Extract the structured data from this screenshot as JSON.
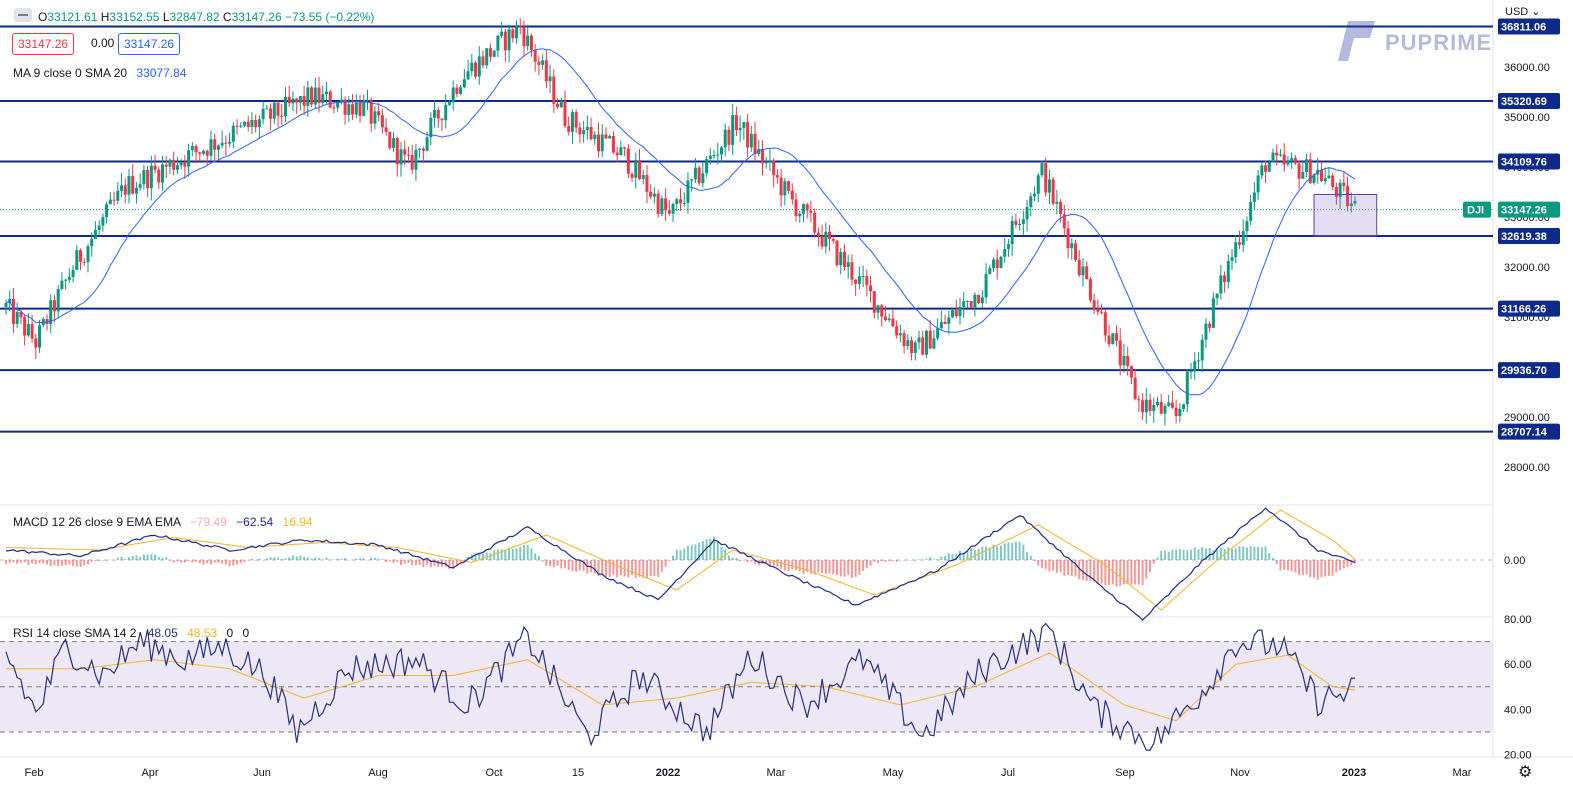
{
  "ohlc": {
    "o_label": "O",
    "o": "33121.61",
    "h_label": "H",
    "h": "33152.55",
    "l_label": "L",
    "l": "32847.82",
    "c_label": "C",
    "c": "33147.26",
    "chg": "−73.55 (−0.22%)"
  },
  "price_boxes": {
    "bid": "33147.26",
    "spread": "0.00",
    "ask": "33147.26"
  },
  "ma_label": {
    "text": "MA 9 close 0 SMA 20",
    "value": "33077.84"
  },
  "macd_label": {
    "text": "MACD 12 26 close 9 EMA EMA",
    "hist": "−79.49",
    "macd": "−62.54",
    "signal": "16.94"
  },
  "rsi_label": {
    "text": "RSI 14 close SMA 14 2",
    "rsi": "48.05",
    "sma": "48.53",
    "z1": "0",
    "z2": "0"
  },
  "currency": "USD",
  "symbol": "DJI",
  "logo_text": "PUPRIME",
  "colors": {
    "up": "#089981",
    "down": "#f23645",
    "ma": "#2962ff",
    "hline": "#0d2a8a",
    "signal": "#f5b42a",
    "macd": "#1d2c8f",
    "rsi": "#25317f",
    "rsi_band": "#ede7f6"
  },
  "chart_data": [
    {
      "type": "candlestick",
      "symbol": "DJI",
      "x_ticks": [
        "Feb",
        "Apr",
        "Jun",
        "Aug",
        "Oct",
        "15",
        "2022",
        "Mar",
        "May",
        "Jul",
        "Sep",
        "Nov",
        "2023",
        "Mar"
      ],
      "y_ticks": [
        "28000.00",
        "29000.00",
        "30000.00",
        "31000.00",
        "32000.00",
        "33000.00",
        "34000.00",
        "35000.00",
        "36000.00"
      ],
      "ylim": [
        27500,
        37100
      ],
      "horizontal_levels": [
        "36811.06",
        "35320.69",
        "34109.76",
        "32619.38",
        "31166.26",
        "29936.70",
        "28707.14"
      ],
      "last_price": "33147.26",
      "close_path_anchors": [
        [
          0,
          31200
        ],
        [
          8,
          30500
        ],
        [
          18,
          32000
        ],
        [
          32,
          33600
        ],
        [
          48,
          34200
        ],
        [
          62,
          34700
        ],
        [
          82,
          35400
        ],
        [
          96,
          35200
        ],
        [
          108,
          34000
        ],
        [
          122,
          35800
        ],
        [
          138,
          36800
        ],
        [
          150,
          35000
        ],
        [
          166,
          34200
        ],
        [
          178,
          33000
        ],
        [
          196,
          34900
        ],
        [
          210,
          33400
        ],
        [
          228,
          31800
        ],
        [
          244,
          30300
        ],
        [
          262,
          31600
        ],
        [
          278,
          33900
        ],
        [
          290,
          31700
        ],
        [
          304,
          29300
        ],
        [
          314,
          29000
        ],
        [
          322,
          30800
        ],
        [
          338,
          34100
        ],
        [
          352,
          33900
        ],
        [
          362,
          33180
        ]
      ],
      "ma_overlay": {
        "name": "MA 9 close 0 SMA 20",
        "last": "33077.84"
      }
    },
    {
      "type": "line",
      "name": "MACD",
      "y_ticks": [
        "0.00"
      ],
      "series": [
        {
          "name": "MACD",
          "last": "-62.54"
        },
        {
          "name": "Signal",
          "last": "16.94"
        },
        {
          "name": "Histogram",
          "last": "-79.49"
        }
      ],
      "macd_anchors": [
        [
          0,
          200
        ],
        [
          20,
          80
        ],
        [
          40,
          500
        ],
        [
          60,
          200
        ],
        [
          80,
          400
        ],
        [
          100,
          300
        ],
        [
          120,
          -150
        ],
        [
          140,
          650
        ],
        [
          160,
          -300
        ],
        [
          175,
          -800
        ],
        [
          190,
          400
        ],
        [
          210,
          -300
        ],
        [
          228,
          -900
        ],
        [
          250,
          -200
        ],
        [
          272,
          900
        ],
        [
          290,
          -300
        ],
        [
          305,
          -1200
        ],
        [
          320,
          -100
        ],
        [
          338,
          1050
        ],
        [
          352,
          200
        ],
        [
          362,
          -62.54
        ]
      ],
      "signal_anchors": [
        [
          0,
          250
        ],
        [
          25,
          200
        ],
        [
          45,
          450
        ],
        [
          65,
          250
        ],
        [
          85,
          350
        ],
        [
          105,
          250
        ],
        [
          125,
          -50
        ],
        [
          145,
          500
        ],
        [
          165,
          -150
        ],
        [
          180,
          -600
        ],
        [
          195,
          200
        ],
        [
          215,
          -200
        ],
        [
          233,
          -700
        ],
        [
          255,
          -100
        ],
        [
          277,
          700
        ],
        [
          295,
          -100
        ],
        [
          310,
          -1000
        ],
        [
          325,
          0
        ],
        [
          342,
          1000
        ],
        [
          356,
          400
        ],
        [
          362,
          16.94
        ]
      ]
    },
    {
      "type": "line",
      "name": "RSI",
      "y_ticks": [
        "80.00",
        "60.00",
        "40.00",
        "20.00"
      ],
      "ylim": [
        18,
        83
      ],
      "bands": [
        30,
        50,
        70
      ],
      "series": [
        {
          "name": "RSI",
          "last": "48.05"
        },
        {
          "name": "SMA",
          "last": "48.53"
        }
      ],
      "rsi_anchors": [
        [
          0,
          65
        ],
        [
          8,
          38
        ],
        [
          16,
          68
        ],
        [
          26,
          55
        ],
        [
          36,
          70
        ],
        [
          48,
          62
        ],
        [
          58,
          68
        ],
        [
          70,
          55
        ],
        [
          78,
          30
        ],
        [
          92,
          58
        ],
        [
          110,
          62
        ],
        [
          124,
          42
        ],
        [
          140,
          72
        ],
        [
          156,
          28
        ],
        [
          170,
          55
        ],
        [
          188,
          30
        ],
        [
          200,
          64
        ],
        [
          214,
          42
        ],
        [
          230,
          62
        ],
        [
          246,
          28
        ],
        [
          262,
          58
        ],
        [
          280,
          75
        ],
        [
          292,
          40
        ],
        [
          308,
          25
        ],
        [
          322,
          50
        ],
        [
          330,
          70
        ],
        [
          342,
          68
        ],
        [
          352,
          44
        ],
        [
          362,
          48.05
        ]
      ],
      "rsi_sma_anchors": [
        [
          0,
          58
        ],
        [
          20,
          58
        ],
        [
          40,
          62
        ],
        [
          60,
          58
        ],
        [
          80,
          45
        ],
        [
          100,
          55
        ],
        [
          120,
          55
        ],
        [
          140,
          62
        ],
        [
          160,
          42
        ],
        [
          180,
          45
        ],
        [
          200,
          52
        ],
        [
          220,
          50
        ],
        [
          240,
          42
        ],
        [
          260,
          50
        ],
        [
          280,
          65
        ],
        [
          300,
          42
        ],
        [
          314,
          35
        ],
        [
          330,
          60
        ],
        [
          344,
          64
        ],
        [
          356,
          50
        ],
        [
          362,
          48.53
        ]
      ]
    }
  ]
}
